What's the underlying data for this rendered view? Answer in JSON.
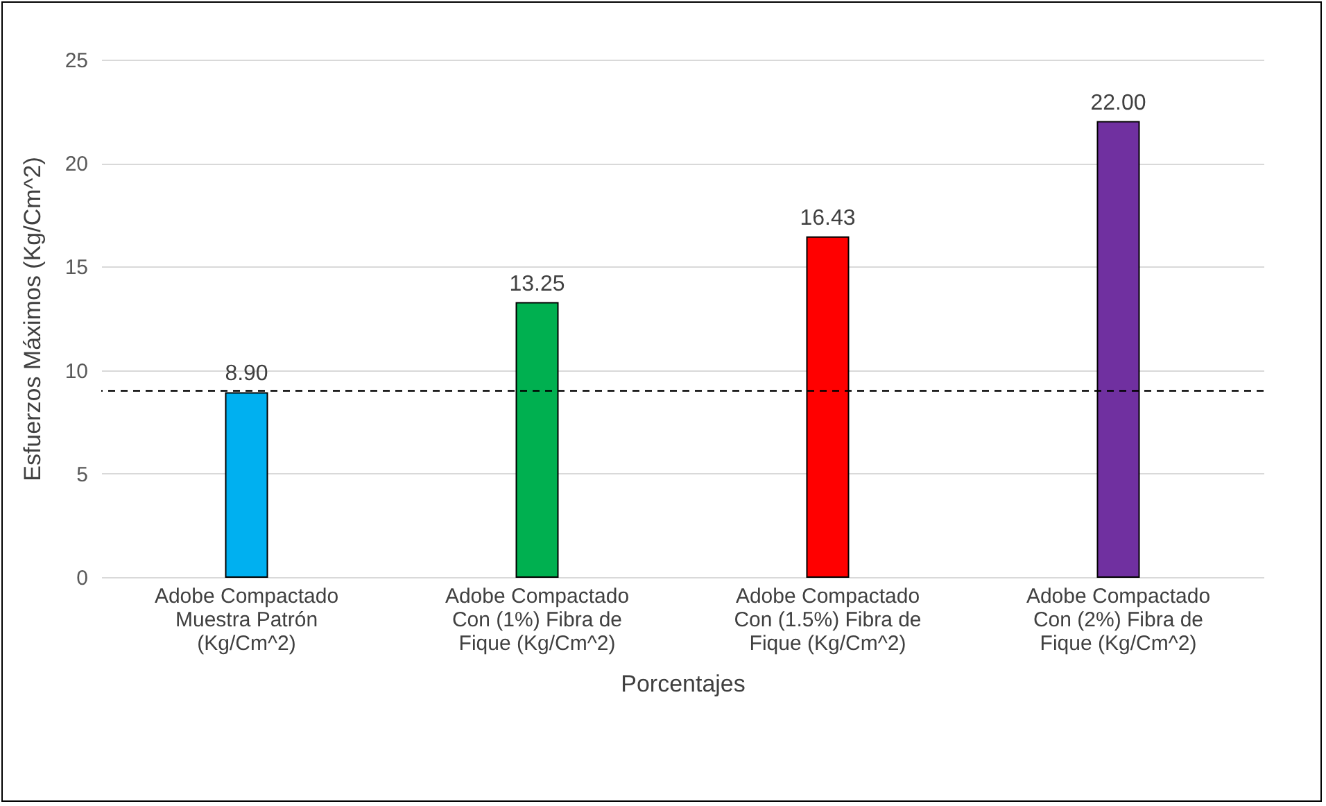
{
  "chart_data": {
    "type": "bar",
    "xlabel": "Porcentajes",
    "ylabel": "Esfuerzos Máximos (Kg/Cm^2)",
    "categories": [
      "Adobe Compactado Muestra Patrón (Kg/Cm^2)",
      "Adobe Compactado Con (1%) Fibra de Fique (Kg/Cm^2)",
      "Adobe Compactado Con (1.5%) Fibra de Fique (Kg/Cm^2)",
      "Adobe Compactado Con (2%) Fibra de Fique (Kg/Cm^2)"
    ],
    "values": [
      8.9,
      13.25,
      16.43,
      22.0
    ],
    "colors": [
      "#00b0f0",
      "#00b050",
      "#ff0000",
      "#7030a0"
    ],
    "value_labels": [
      "8.90",
      "13.25",
      "16.43",
      "22.00"
    ],
    "ylim": [
      0,
      25
    ],
    "yticks": [
      0,
      5,
      10,
      15,
      20,
      25
    ],
    "grid": "y",
    "ref_lines": [
      {
        "axis": "y",
        "value": 9,
        "color": "#000000",
        "line_style": "dashed"
      }
    ]
  }
}
